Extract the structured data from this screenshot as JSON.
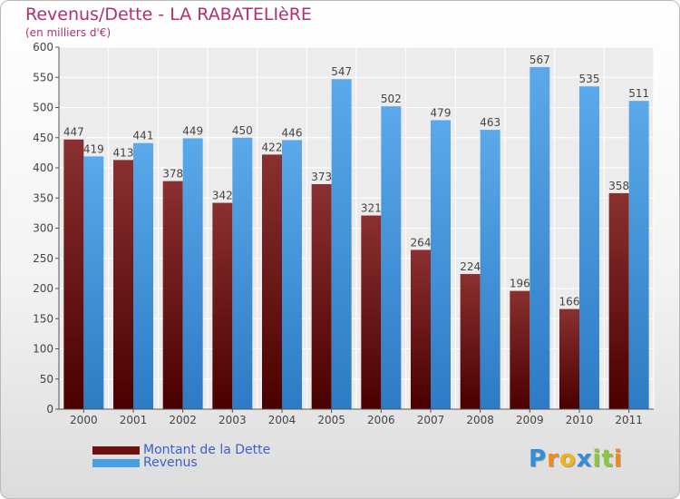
{
  "header": {
    "title": "Revenus/Dette - LA RABATELIèRE",
    "subtitle": "(en milliers d'€)"
  },
  "chart_data": {
    "type": "bar",
    "title": "Revenus/Dette - LA RABATELIèRE",
    "subtitle": "(en milliers d'€)",
    "categories": [
      "2000",
      "2001",
      "2002",
      "2003",
      "2004",
      "2005",
      "2006",
      "2007",
      "2008",
      "2009",
      "2010",
      "2011"
    ],
    "series": [
      {
        "name": "Montant de la Dette",
        "values": [
          447,
          413,
          378,
          342,
          422,
          373,
          321,
          264,
          224,
          196,
          166,
          358
        ],
        "color": "#7a1a1a"
      },
      {
        "name": "Revenus",
        "values": [
          419,
          441,
          449,
          450,
          446,
          547,
          502,
          479,
          463,
          567,
          535,
          511
        ],
        "color": "#4a9fe0"
      }
    ],
    "ylim": [
      0,
      600
    ],
    "yticks": [
      0,
      50,
      100,
      150,
      200,
      250,
      300,
      350,
      400,
      450,
      500,
      550,
      600
    ],
    "grid": true,
    "legend_position": "bottom-left"
  },
  "legend": {
    "items": [
      {
        "label": "Montant de la Dette",
        "color": "#6b0f0f"
      },
      {
        "label": "Revenus",
        "color": "#4a9fe0"
      }
    ]
  },
  "logo": {
    "letters": [
      {
        "ch": "P",
        "color": "#2f8fd8"
      },
      {
        "ch": "r",
        "color": "#f08a1c"
      },
      {
        "ch": "o",
        "color": "#f0b31c"
      },
      {
        "ch": "x",
        "color": "#2f8fd8"
      },
      {
        "ch": "i",
        "color": "#8cc63f"
      },
      {
        "ch": "t",
        "color": "#8cc63f"
      },
      {
        "ch": "i",
        "color": "#f08a1c"
      }
    ]
  }
}
